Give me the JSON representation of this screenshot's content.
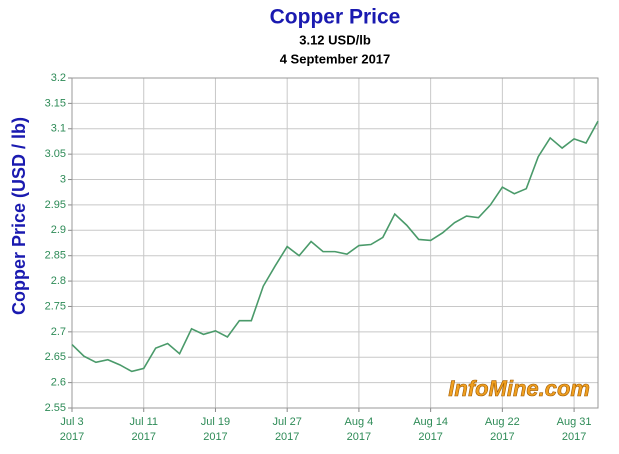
{
  "chart_data": {
    "type": "line",
    "title": "Copper Price",
    "subtitles": [
      "3.12 USD/lb",
      "4 September 2017"
    ],
    "y_label": "Copper  Price (USD / lb)",
    "watermark": "InfoMine.com",
    "color": "#4a9a6a",
    "grid": true,
    "categories": [
      "Jul 3\n2017",
      null,
      null,
      null,
      null,
      null,
      "Jul 11\n2017",
      null,
      null,
      null,
      null,
      null,
      "Jul 19\n2017",
      null,
      null,
      null,
      null,
      null,
      "Jul 27\n2017",
      null,
      null,
      null,
      null,
      null,
      "Aug 4\n2017",
      null,
      null,
      null,
      null,
      null,
      "Aug 14\n2017",
      null,
      null,
      null,
      null,
      null,
      "Aug 22\n2017",
      null,
      null,
      null,
      null,
      null,
      "Aug 31\n2017",
      null,
      null
    ],
    "values": [
      2.675,
      2.652,
      2.64,
      2.645,
      2.635,
      2.622,
      2.628,
      2.668,
      2.677,
      2.657,
      2.706,
      2.695,
      2.702,
      2.69,
      2.722,
      2.722,
      2.79,
      2.83,
      2.868,
      2.85,
      2.878,
      2.858,
      2.858,
      2.853,
      2.87,
      2.872,
      2.886,
      2.932,
      2.91,
      2.882,
      2.88,
      2.895,
      2.915,
      2.928,
      2.925,
      2.95,
      2.985,
      2.972,
      2.982,
      3.045,
      3.082,
      3.062,
      3.08,
      3.072,
      3.115
    ],
    "ylim": [
      2.55,
      3.2
    ],
    "yticks": [
      2.55,
      2.6,
      2.65,
      2.7,
      2.75,
      2.8,
      2.85,
      2.9,
      2.95,
      3,
      3.05,
      3.1,
      3.15,
      3.2
    ]
  }
}
